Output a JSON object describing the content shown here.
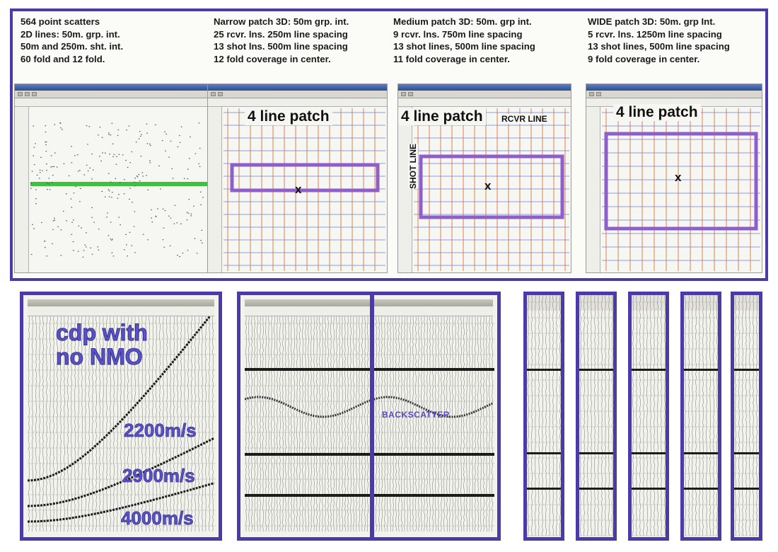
{
  "captions": [
    {
      "lines": [
        "564 point scatters",
        "2D lines: 50m. grp. int.",
        "50m and 250m. sht. int.",
        "60 fold and 12 fold."
      ]
    },
    {
      "lines": [
        "Narrow patch 3D: 50m grp. int.",
        "25 rcvr. lns. 250m line spacing",
        "13 shot lns. 500m line spacing",
        "12 fold coverage in center."
      ]
    },
    {
      "lines": [
        "Medium patch 3D: 50m. grp int.",
        "9 rcvr. lns. 750m line spacing",
        "13 shot lines, 500m line spacing",
        "11 fold coverage in center."
      ]
    },
    {
      "lines": [
        "WIDE patch 3D: 50m. grp Int.",
        "5 rcvr. lns. 1250m line spacing",
        "13 shot lines, 500m line spacing",
        "9 fold coverage in center."
      ]
    }
  ],
  "panels": {
    "narrow": {
      "title": "4 line patch",
      "center_mark": "x"
    },
    "medium": {
      "title": "4 line patch",
      "rcvr_label": "RCVR LINE",
      "shot_label": "SHOT LINE",
      "center_mark": "x"
    },
    "wide": {
      "title": "4 line patch",
      "center_mark": "x"
    }
  },
  "cdp": {
    "title": "cdp with\nno NMO",
    "velocities": [
      "2200m/s",
      "2900m/s",
      "4000m/s"
    ]
  },
  "middle": {
    "annotation": "BACKSCATTER"
  },
  "colors": {
    "frame": "#4b3aa8",
    "green_line": "#3cc23c",
    "patch_box": "#8e5fc9",
    "grid_orange": "#e08050",
    "grid_blue": "#6d7fd0",
    "overlay_text": "#5a52c8"
  }
}
